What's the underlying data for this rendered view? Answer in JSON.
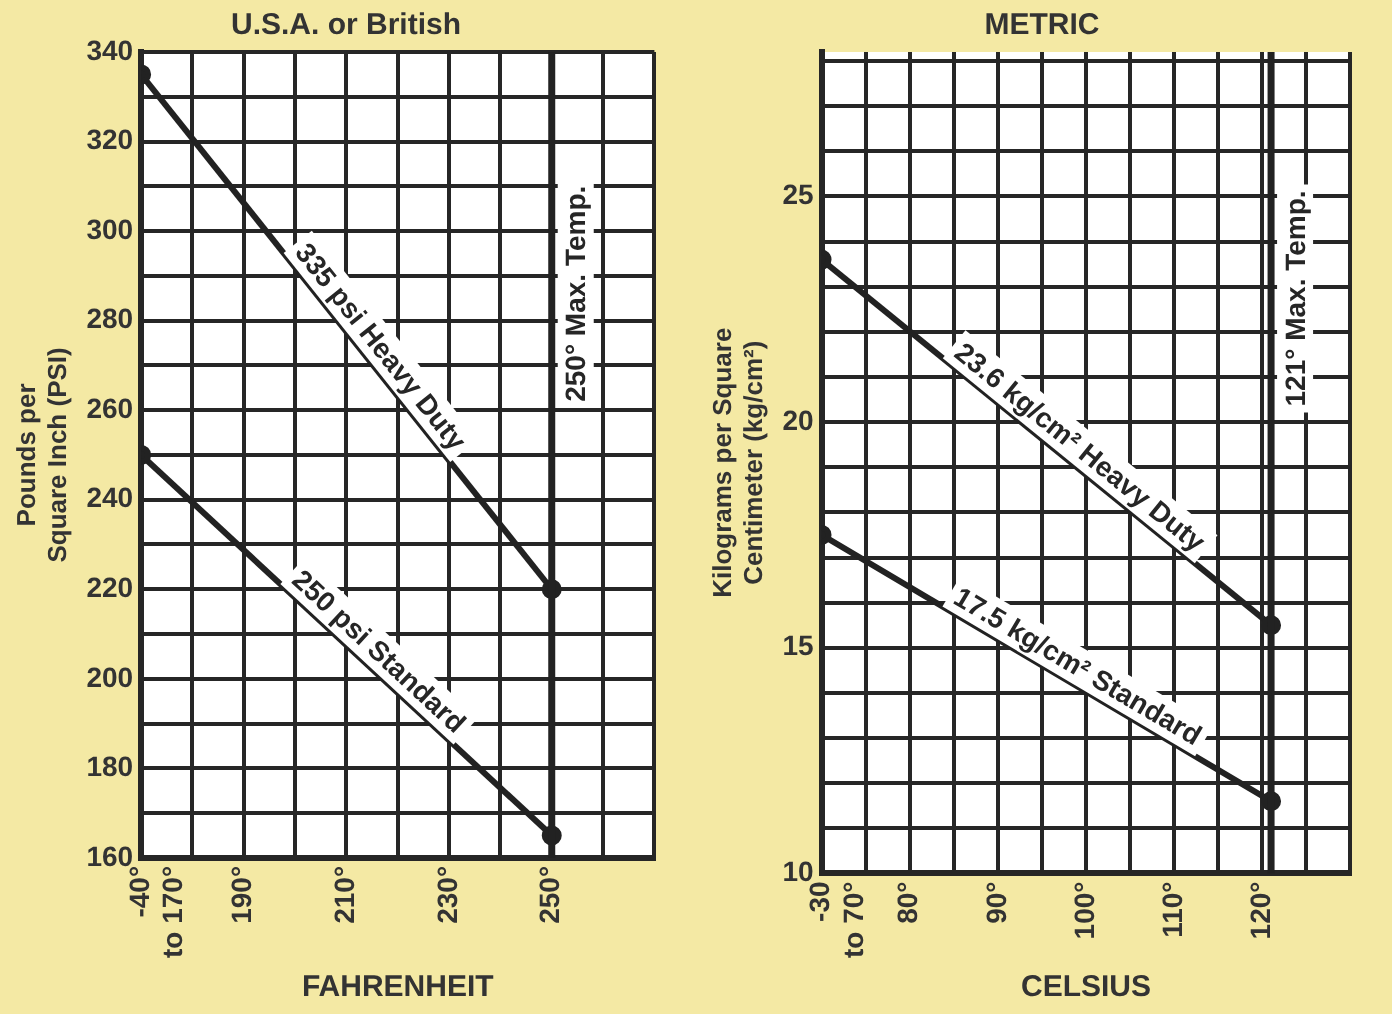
{
  "chart_data": [
    {
      "type": "line",
      "title": "U.S.A. or British",
      "xlabel": "FAHRENHEIT",
      "ylabel": "Pounds per\nSquare Inch (PSI)",
      "x": [
        170,
        250
      ],
      "series": [
        {
          "name": "335 psi Heavy Duty",
          "color": "#222222",
          "values": [
            335,
            220
          ]
        },
        {
          "name": "250 psi Standard",
          "color": "#222222",
          "values": [
            250,
            165
          ]
        }
      ],
      "xlim": [
        170,
        270
      ],
      "xticks": [
        {
          "value": 170,
          "label": "-40°\nto 170°"
        },
        {
          "value": 180,
          "label": null
        },
        {
          "value": 190,
          "label": "190°"
        },
        {
          "value": 200,
          "label": null
        },
        {
          "value": 210,
          "label": "210°"
        },
        {
          "value": 220,
          "label": null
        },
        {
          "value": 230,
          "label": "230°"
        },
        {
          "value": 240,
          "label": null
        },
        {
          "value": 250,
          "label": "250°"
        },
        {
          "value": 260,
          "label": null
        },
        {
          "value": 270,
          "label": null
        }
      ],
      "ylim": [
        160,
        340
      ],
      "yticks": [
        160,
        {
          "value": 170,
          "label": null
        },
        180,
        {
          "value": 190,
          "label": null
        },
        200,
        {
          "value": 210,
          "label": null
        },
        220,
        {
          "value": 230,
          "label": null
        },
        240,
        {
          "value": 250,
          "label": null
        },
        260,
        {
          "value": 270,
          "label": null
        },
        280,
        {
          "value": 290,
          "label": null
        },
        300,
        {
          "value": 310,
          "label": null
        },
        320,
        {
          "value": 330,
          "label": null
        },
        340
      ],
      "ref_lines": [
        {
          "axis": "x",
          "value": 250,
          "label": "250° Max. Temp.",
          "color": "#222222"
        }
      ],
      "grid": true,
      "marker": "circle",
      "line_style": "solid",
      "legend": false
    },
    {
      "type": "line",
      "title": "METRIC",
      "xlabel": "CELSIUS",
      "ylabel": "Kilograms per Square\nCentimeter (kg/cm²)",
      "x": [
        70,
        121
      ],
      "series": [
        {
          "name": "23.6 kg/cm² Heavy Duty",
          "color": "#222222",
          "values": [
            23.6,
            15.5
          ]
        },
        {
          "name": "17.5 kg/cm² Standard",
          "color": "#222222",
          "values": [
            17.5,
            11.6
          ]
        }
      ],
      "xlim": [
        70,
        130
      ],
      "xticks": [
        {
          "value": 70,
          "label": "-30\nto 70°"
        },
        {
          "value": 75,
          "label": null
        },
        {
          "value": 80,
          "label": "80°"
        },
        {
          "value": 85,
          "label": null
        },
        {
          "value": 90,
          "label": "90°"
        },
        {
          "value": 95,
          "label": null
        },
        {
          "value": 100,
          "label": "100°"
        },
        {
          "value": 105,
          "label": null
        },
        {
          "value": 110,
          "label": "110°"
        },
        {
          "value": 115,
          "label": null
        },
        {
          "value": 120,
          "label": "120°"
        },
        {
          "value": 125,
          "label": null
        },
        {
          "value": 130,
          "label": null
        }
      ],
      "ylim": [
        10,
        28.2
      ],
      "yticks": [
        10,
        {
          "value": 11,
          "label": null
        },
        {
          "value": 12,
          "label": null
        },
        {
          "value": 13,
          "label": null
        },
        {
          "value": 14,
          "label": null
        },
        15,
        {
          "value": 16,
          "label": null
        },
        {
          "value": 17,
          "label": null
        },
        {
          "value": 18,
          "label": null
        },
        {
          "value": 19,
          "label": null
        },
        20,
        {
          "value": 21,
          "label": null
        },
        {
          "value": 22,
          "label": null
        },
        {
          "value": 23,
          "label": null
        },
        {
          "value": 24,
          "label": null
        },
        25,
        {
          "value": 26,
          "label": null
        },
        {
          "value": 27,
          "label": null
        },
        {
          "value": 28,
          "label": null
        }
      ],
      "ref_lines": [
        {
          "axis": "x",
          "value": 121,
          "label": "121° Max. Temp.",
          "color": "#222222"
        }
      ],
      "grid": true,
      "marker": "circle",
      "line_style": "solid",
      "legend": false
    }
  ]
}
